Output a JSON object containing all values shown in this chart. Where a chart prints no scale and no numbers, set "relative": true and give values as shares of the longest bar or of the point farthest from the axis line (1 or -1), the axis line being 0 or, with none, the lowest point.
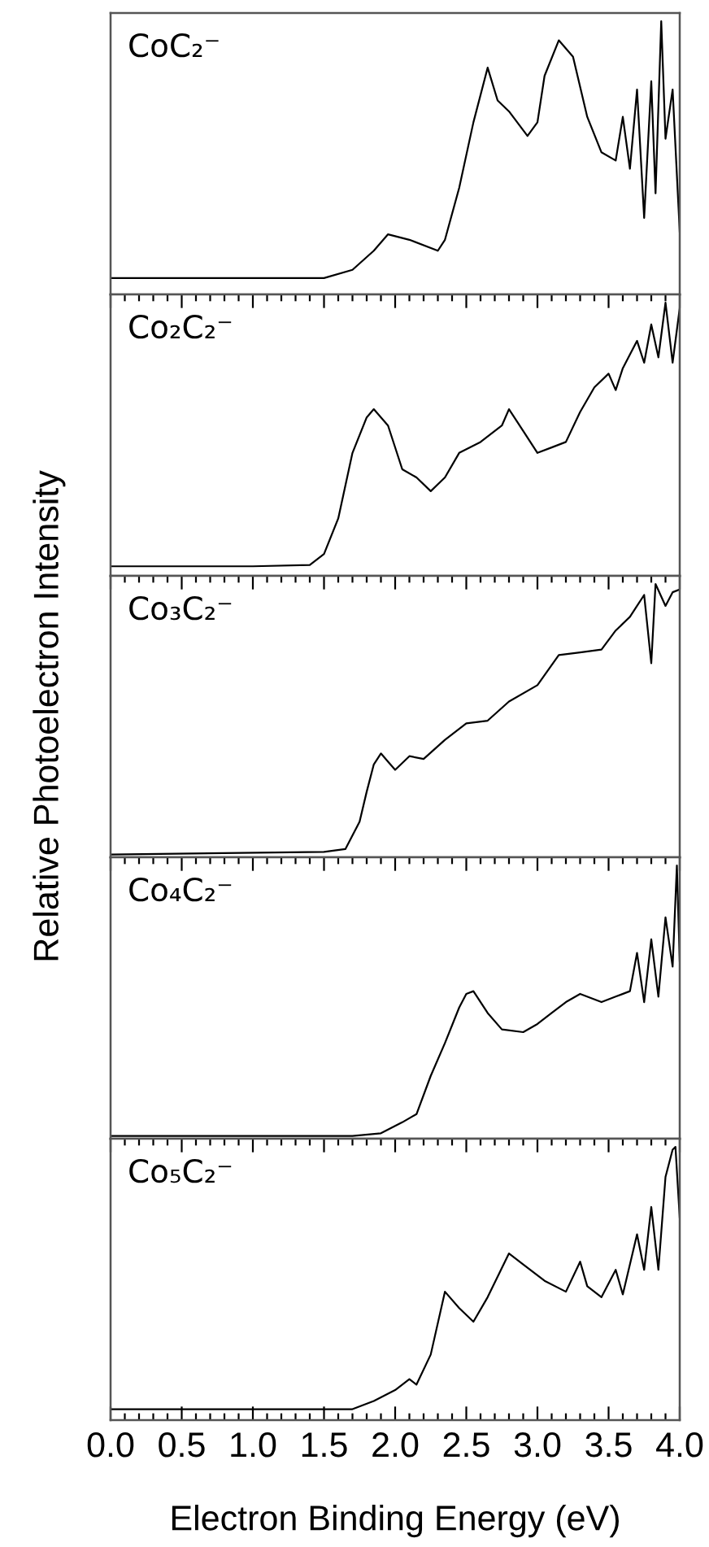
{
  "chart_data": [
    {
      "type": "line",
      "title": "CoC₂⁻",
      "relative": true,
      "xlim": [
        0.0,
        4.0
      ],
      "tick_labels": false,
      "xticks": [
        0.0,
        {
          "value": 0.1,
          "label": null
        },
        {
          "value": 0.2,
          "label": null
        },
        {
          "value": 0.3,
          "label": null
        },
        {
          "value": 0.4,
          "label": null
        },
        0.5,
        {
          "value": 0.6,
          "label": null
        },
        {
          "value": 0.7,
          "label": null
        },
        {
          "value": 0.8,
          "label": null
        },
        {
          "value": 0.9,
          "label": null
        },
        1.0,
        {
          "value": 1.1,
          "label": null
        },
        {
          "value": 1.2,
          "label": null
        },
        {
          "value": 1.3,
          "label": null
        },
        {
          "value": 1.4,
          "label": null
        },
        1.5,
        {
          "value": 1.6,
          "label": null
        },
        {
          "value": 1.7,
          "label": null
        },
        {
          "value": 1.8,
          "label": null
        },
        {
          "value": 1.9,
          "label": null
        },
        2.0,
        {
          "value": 2.1,
          "label": null
        },
        {
          "value": 2.2,
          "label": null
        },
        {
          "value": 2.3,
          "label": null
        },
        {
          "value": 2.4,
          "label": null
        },
        2.5,
        {
          "value": 2.6,
          "label": null
        },
        {
          "value": 2.7,
          "label": null
        },
        {
          "value": 2.8,
          "label": null
        },
        {
          "value": 2.9,
          "label": null
        },
        3.0,
        {
          "value": 3.1,
          "label": null
        },
        {
          "value": 3.2,
          "label": null
        },
        {
          "value": 3.3,
          "label": null
        },
        {
          "value": 3.4,
          "label": null
        },
        3.5,
        {
          "value": 3.6,
          "label": null
        },
        {
          "value": 3.7,
          "label": null
        },
        {
          "value": 3.8,
          "label": null
        },
        {
          "value": 3.9,
          "label": null
        },
        4.0
      ],
      "series": [
        {
          "color": "#000000",
          "x": [
            0.0,
            1.0,
            1.5,
            1.7,
            1.85,
            1.95,
            2.1,
            2.3,
            2.35,
            2.45,
            2.55,
            2.65,
            2.72,
            2.8,
            2.93,
            3.0,
            3.05,
            3.15,
            3.25,
            3.35,
            3.45,
            3.55,
            3.6,
            3.65,
            3.7,
            3.75,
            3.8,
            3.83,
            3.87,
            3.9,
            3.95,
            4.0
          ],
          "values": [
            0.06,
            0.06,
            0.06,
            0.09,
            0.16,
            0.22,
            0.2,
            0.16,
            0.2,
            0.39,
            0.63,
            0.83,
            0.71,
            0.67,
            0.58,
            0.63,
            0.8,
            0.93,
            0.87,
            0.65,
            0.52,
            0.49,
            0.65,
            0.46,
            0.75,
            0.28,
            0.78,
            0.37,
            1.0,
            0.57,
            0.75,
            0.23
          ]
        }
      ]
    },
    {
      "type": "line",
      "title": "Co₂C₂⁻",
      "relative": true,
      "xlim": [
        0.0,
        4.0
      ],
      "tick_labels": false,
      "xticks": [
        0.0,
        {
          "value": 0.1,
          "label": null
        },
        {
          "value": 0.2,
          "label": null
        },
        {
          "value": 0.3,
          "label": null
        },
        {
          "value": 0.4,
          "label": null
        },
        0.5,
        {
          "value": 0.6,
          "label": null
        },
        {
          "value": 0.7,
          "label": null
        },
        {
          "value": 0.8,
          "label": null
        },
        {
          "value": 0.9,
          "label": null
        },
        1.0,
        {
          "value": 1.1,
          "label": null
        },
        {
          "value": 1.2,
          "label": null
        },
        {
          "value": 1.3,
          "label": null
        },
        {
          "value": 1.4,
          "label": null
        },
        1.5,
        {
          "value": 1.6,
          "label": null
        },
        {
          "value": 1.7,
          "label": null
        },
        {
          "value": 1.8,
          "label": null
        },
        {
          "value": 1.9,
          "label": null
        },
        2.0,
        {
          "value": 2.1,
          "label": null
        },
        {
          "value": 2.2,
          "label": null
        },
        {
          "value": 2.3,
          "label": null
        },
        {
          "value": 2.4,
          "label": null
        },
        2.5,
        {
          "value": 2.6,
          "label": null
        },
        {
          "value": 2.7,
          "label": null
        },
        {
          "value": 2.8,
          "label": null
        },
        {
          "value": 2.9,
          "label": null
        },
        3.0,
        {
          "value": 3.1,
          "label": null
        },
        {
          "value": 3.2,
          "label": null
        },
        {
          "value": 3.3,
          "label": null
        },
        {
          "value": 3.4,
          "label": null
        },
        3.5,
        {
          "value": 3.6,
          "label": null
        },
        {
          "value": 3.7,
          "label": null
        },
        {
          "value": 3.8,
          "label": null
        },
        {
          "value": 3.9,
          "label": null
        },
        4.0
      ],
      "series": [
        {
          "color": "#000000",
          "x": [
            0.0,
            1.0,
            1.4,
            1.5,
            1.6,
            1.7,
            1.8,
            1.85,
            1.95,
            2.05,
            2.15,
            2.25,
            2.35,
            2.45,
            2.6,
            2.75,
            2.8,
            2.9,
            3.0,
            3.1,
            3.2,
            3.3,
            3.4,
            3.5,
            3.55,
            3.6,
            3.7,
            3.75,
            3.8,
            3.85,
            3.9,
            3.95,
            4.0
          ],
          "values": [
            0.035,
            0.035,
            0.04,
            0.08,
            0.21,
            0.45,
            0.58,
            0.61,
            0.55,
            0.39,
            0.36,
            0.31,
            0.36,
            0.45,
            0.49,
            0.55,
            0.61,
            0.53,
            0.45,
            0.47,
            0.49,
            0.6,
            0.69,
            0.74,
            0.68,
            0.76,
            0.86,
            0.78,
            0.92,
            0.8,
            1.0,
            0.78,
            0.98
          ]
        }
      ]
    },
    {
      "type": "line",
      "title": "Co₃C₂⁻",
      "ylabel": "Relative Photoelectron Intensity",
      "relative": true,
      "xlim": [
        0.0,
        4.0
      ],
      "tick_labels": false,
      "xticks": [
        0.0,
        {
          "value": 0.1,
          "label": null
        },
        {
          "value": 0.2,
          "label": null
        },
        {
          "value": 0.3,
          "label": null
        },
        {
          "value": 0.4,
          "label": null
        },
        0.5,
        {
          "value": 0.6,
          "label": null
        },
        {
          "value": 0.7,
          "label": null
        },
        {
          "value": 0.8,
          "label": null
        },
        {
          "value": 0.9,
          "label": null
        },
        1.0,
        {
          "value": 1.1,
          "label": null
        },
        {
          "value": 1.2,
          "label": null
        },
        {
          "value": 1.3,
          "label": null
        },
        {
          "value": 1.4,
          "label": null
        },
        1.5,
        {
          "value": 1.6,
          "label": null
        },
        {
          "value": 1.7,
          "label": null
        },
        {
          "value": 1.8,
          "label": null
        },
        {
          "value": 1.9,
          "label": null
        },
        2.0,
        {
          "value": 2.1,
          "label": null
        },
        {
          "value": 2.2,
          "label": null
        },
        {
          "value": 2.3,
          "label": null
        },
        {
          "value": 2.4,
          "label": null
        },
        2.5,
        {
          "value": 2.6,
          "label": null
        },
        {
          "value": 2.7,
          "label": null
        },
        {
          "value": 2.8,
          "label": null
        },
        {
          "value": 2.9,
          "label": null
        },
        3.0,
        {
          "value": 3.1,
          "label": null
        },
        {
          "value": 3.2,
          "label": null
        },
        {
          "value": 3.3,
          "label": null
        },
        {
          "value": 3.4,
          "label": null
        },
        3.5,
        {
          "value": 3.6,
          "label": null
        },
        {
          "value": 3.7,
          "label": null
        },
        {
          "value": 3.8,
          "label": null
        },
        {
          "value": 3.9,
          "label": null
        },
        4.0
      ],
      "series": [
        {
          "color": "#000000",
          "x": [
            0.0,
            1.5,
            1.65,
            1.75,
            1.8,
            1.85,
            1.9,
            1.95,
            2.0,
            2.1,
            2.2,
            2.35,
            2.5,
            2.65,
            2.8,
            3.0,
            3.15,
            3.3,
            3.45,
            3.55,
            3.65,
            3.7,
            3.75,
            3.8,
            3.83,
            3.9,
            3.95,
            4.0
          ],
          "values": [
            0.01,
            0.02,
            0.03,
            0.13,
            0.24,
            0.34,
            0.38,
            0.35,
            0.32,
            0.37,
            0.36,
            0.43,
            0.49,
            0.5,
            0.57,
            0.63,
            0.74,
            0.75,
            0.76,
            0.83,
            0.88,
            0.92,
            0.96,
            0.71,
            1.0,
            0.92,
            0.97,
            0.98
          ]
        }
      ]
    },
    {
      "type": "line",
      "title": "Co₄C₂⁻",
      "relative": true,
      "xlim": [
        0.0,
        4.0
      ],
      "tick_labels": false,
      "xticks": [
        0.0,
        {
          "value": 0.1,
          "label": null
        },
        {
          "value": 0.2,
          "label": null
        },
        {
          "value": 0.3,
          "label": null
        },
        {
          "value": 0.4,
          "label": null
        },
        0.5,
        {
          "value": 0.6,
          "label": null
        },
        {
          "value": 0.7,
          "label": null
        },
        {
          "value": 0.8,
          "label": null
        },
        {
          "value": 0.9,
          "label": null
        },
        1.0,
        {
          "value": 1.1,
          "label": null
        },
        {
          "value": 1.2,
          "label": null
        },
        {
          "value": 1.3,
          "label": null
        },
        {
          "value": 1.4,
          "label": null
        },
        1.5,
        {
          "value": 1.6,
          "label": null
        },
        {
          "value": 1.7,
          "label": null
        },
        {
          "value": 1.8,
          "label": null
        },
        {
          "value": 1.9,
          "label": null
        },
        2.0,
        {
          "value": 2.1,
          "label": null
        },
        {
          "value": 2.2,
          "label": null
        },
        {
          "value": 2.3,
          "label": null
        },
        {
          "value": 2.4,
          "label": null
        },
        2.5,
        {
          "value": 2.6,
          "label": null
        },
        {
          "value": 2.7,
          "label": null
        },
        {
          "value": 2.8,
          "label": null
        },
        {
          "value": 2.9,
          "label": null
        },
        3.0,
        {
          "value": 3.1,
          "label": null
        },
        {
          "value": 3.2,
          "label": null
        },
        {
          "value": 3.3,
          "label": null
        },
        {
          "value": 3.4,
          "label": null
        },
        3.5,
        {
          "value": 3.6,
          "label": null
        },
        {
          "value": 3.7,
          "label": null
        },
        {
          "value": 3.8,
          "label": null
        },
        {
          "value": 3.9,
          "label": null
        },
        4.0
      ],
      "series": [
        {
          "color": "#000000",
          "x": [
            0.0,
            1.7,
            1.9,
            2.05,
            2.15,
            2.25,
            2.35,
            2.45,
            2.5,
            2.55,
            2.65,
            2.75,
            2.9,
            3.0,
            3.1,
            3.2,
            3.3,
            3.45,
            3.55,
            3.65,
            3.7,
            3.75,
            3.8,
            3.85,
            3.9,
            3.95,
            3.98,
            4.0
          ],
          "values": [
            0.01,
            0.01,
            0.02,
            0.06,
            0.09,
            0.23,
            0.35,
            0.48,
            0.53,
            0.54,
            0.46,
            0.4,
            0.39,
            0.42,
            0.46,
            0.5,
            0.53,
            0.5,
            0.52,
            0.54,
            0.68,
            0.5,
            0.73,
            0.52,
            0.81,
            0.63,
            1.0,
            0.65
          ]
        }
      ]
    },
    {
      "type": "line",
      "title": "Co₅C₂⁻",
      "xlabel": "Electron Binding Energy (eV)",
      "relative": true,
      "xlim": [
        0.0,
        4.0
      ],
      "tick_labels": "x",
      "xticks": [
        {
          "value": 0.0,
          "label": "0.0"
        },
        {
          "value": 0.1,
          "label": null
        },
        {
          "value": 0.2,
          "label": null
        },
        {
          "value": 0.3,
          "label": null
        },
        {
          "value": 0.4,
          "label": null
        },
        0.5,
        {
          "value": 0.6,
          "label": null
        },
        {
          "value": 0.7,
          "label": null
        },
        {
          "value": 0.8,
          "label": null
        },
        {
          "value": 0.9,
          "label": null
        },
        {
          "value": 1.0,
          "label": "1.0"
        },
        {
          "value": 1.1,
          "label": null
        },
        {
          "value": 1.2,
          "label": null
        },
        {
          "value": 1.3,
          "label": null
        },
        {
          "value": 1.4,
          "label": null
        },
        1.5,
        {
          "value": 1.6,
          "label": null
        },
        {
          "value": 1.7,
          "label": null
        },
        {
          "value": 1.8,
          "label": null
        },
        {
          "value": 1.9,
          "label": null
        },
        {
          "value": 2.0,
          "label": "2.0"
        },
        {
          "value": 2.1,
          "label": null
        },
        {
          "value": 2.2,
          "label": null
        },
        {
          "value": 2.3,
          "label": null
        },
        {
          "value": 2.4,
          "label": null
        },
        2.5,
        {
          "value": 2.6,
          "label": null
        },
        {
          "value": 2.7,
          "label": null
        },
        {
          "value": 2.8,
          "label": null
        },
        {
          "value": 2.9,
          "label": null
        },
        {
          "value": 3.0,
          "label": "3.0"
        },
        {
          "value": 3.1,
          "label": null
        },
        {
          "value": 3.2,
          "label": null
        },
        {
          "value": 3.3,
          "label": null
        },
        {
          "value": 3.4,
          "label": null
        },
        3.5,
        {
          "value": 3.6,
          "label": null
        },
        {
          "value": 3.7,
          "label": null
        },
        {
          "value": 3.8,
          "label": null
        },
        {
          "value": 3.9,
          "label": null
        },
        {
          "value": 4.0,
          "label": "4.0"
        }
      ],
      "series": [
        {
          "color": "#000000",
          "x": [
            0.0,
            1.7,
            1.85,
            2.0,
            2.1,
            2.15,
            2.25,
            2.35,
            2.45,
            2.55,
            2.65,
            2.8,
            2.9,
            3.05,
            3.2,
            3.3,
            3.35,
            3.45,
            3.55,
            3.6,
            3.7,
            3.75,
            3.8,
            3.85,
            3.9,
            3.95,
            3.97,
            4.0
          ],
          "values": [
            0.04,
            0.04,
            0.07,
            0.11,
            0.15,
            0.13,
            0.24,
            0.47,
            0.41,
            0.36,
            0.45,
            0.61,
            0.57,
            0.51,
            0.47,
            0.58,
            0.49,
            0.45,
            0.55,
            0.46,
            0.68,
            0.55,
            0.78,
            0.55,
            0.89,
            0.99,
            1.0,
            0.74
          ]
        }
      ]
    }
  ]
}
